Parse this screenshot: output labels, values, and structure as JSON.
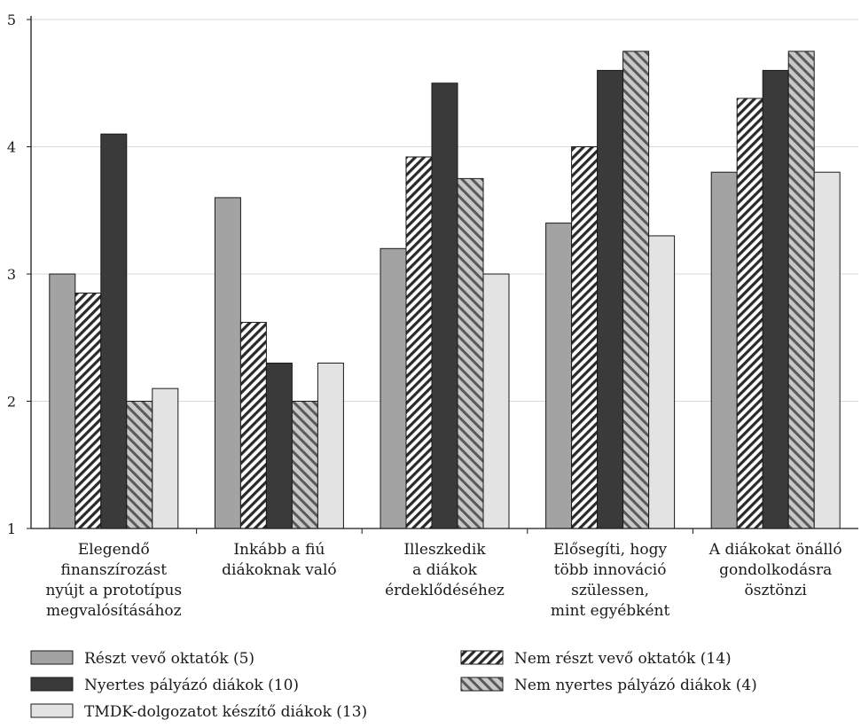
{
  "chart_data": {
    "type": "bar",
    "title": "",
    "xlabel": "",
    "ylabel": "",
    "ylim": [
      1,
      5
    ],
    "yticks": [
      1,
      2,
      3,
      4,
      5
    ],
    "grid": "horizontal",
    "legend_position": "bottom",
    "categories": [
      [
        "Elegendő",
        "finanszírozást",
        "nyújt a prototípus",
        "megvalósításához"
      ],
      [
        "Inkább a fiú",
        "diákoknak való"
      ],
      [
        "Illeszkedik",
        "a diákok",
        "érdeklődéséhez"
      ],
      [
        "Elősegíti, hogy",
        "több innováció",
        "szülessen,",
        "mint egyébként"
      ],
      [
        "A diákokat önálló",
        "gondolkodásra",
        "ösztönzi"
      ]
    ],
    "series": [
      {
        "name": "Részt vevő oktatók (5)",
        "fill": "#a3a3a3",
        "pattern": "solid",
        "values": [
          3.0,
          3.6,
          3.2,
          3.4,
          3.8
        ]
      },
      {
        "name": "Nem részt vevő oktatók (14)",
        "fill": "#ffffff",
        "pattern": "dense-diagonal",
        "values": [
          2.85,
          2.62,
          3.92,
          4.0,
          4.38
        ]
      },
      {
        "name": "Nyertes pályázó diákok (10)",
        "fill": "#3a3a3a",
        "pattern": "solid",
        "values": [
          4.1,
          2.3,
          4.5,
          4.6,
          4.6
        ]
      },
      {
        "name": "Nem nyertes pályázó diákok (4)",
        "fill": "#9a9a9a",
        "pattern": "diagonal",
        "values": [
          2.0,
          2.0,
          3.75,
          4.75,
          4.75
        ]
      },
      {
        "name": "TMDK-dolgozatot készítő diákok (13)",
        "fill": "#e3e3e3",
        "pattern": "solid",
        "values": [
          2.1,
          2.3,
          3.0,
          3.3,
          3.8
        ]
      }
    ]
  }
}
